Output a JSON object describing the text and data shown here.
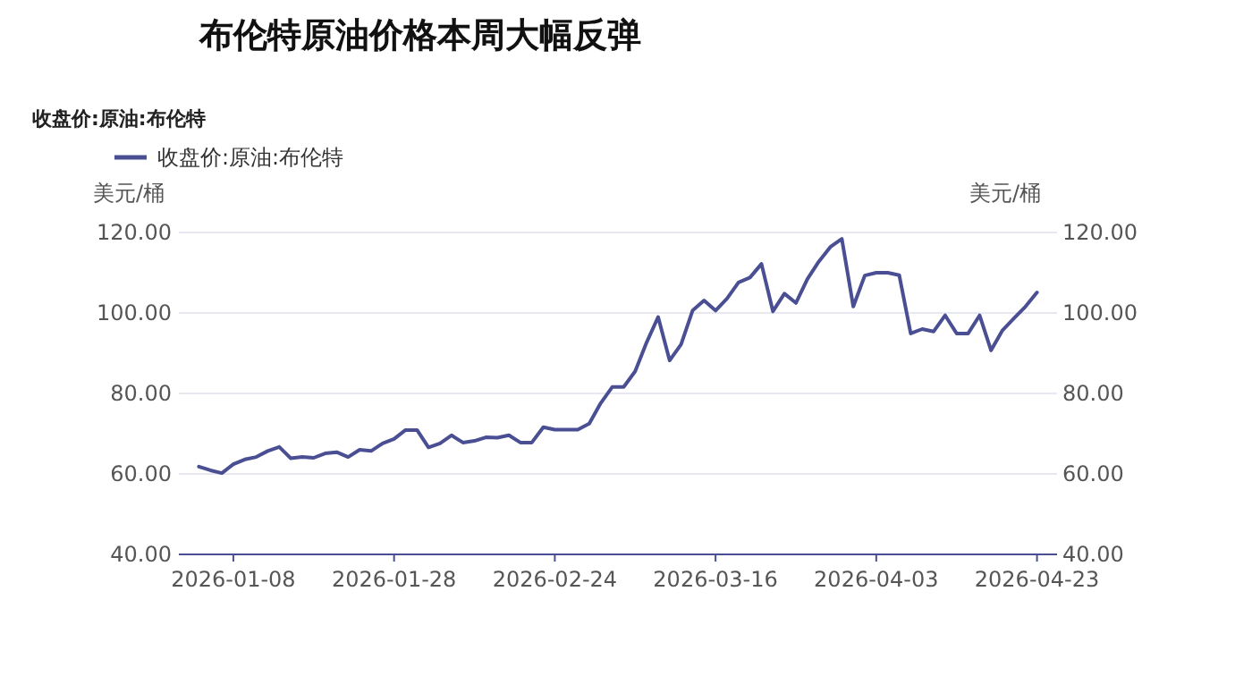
{
  "chart_data": {
    "type": "line",
    "title": "布伦特原油价格本周大幅反弹",
    "subtitle": "收盘价:原油:布伦特",
    "ylabel": "美元/桶",
    "y2label": "美元/桶",
    "categories": [
      null,
      null,
      null,
      "2026-01-08",
      null,
      null,
      null,
      null,
      null,
      null,
      null,
      null,
      null,
      null,
      null,
      null,
      null,
      "2026-01-28",
      null,
      null,
      null,
      null,
      null,
      null,
      null,
      null,
      null,
      null,
      null,
      null,
      null,
      "2026-02-24",
      null,
      null,
      null,
      null,
      null,
      null,
      null,
      null,
      null,
      null,
      null,
      null,
      null,
      "2026-03-16",
      null,
      null,
      null,
      null,
      null,
      null,
      null,
      null,
      null,
      null,
      null,
      null,
      null,
      "2026-04-03",
      null,
      null,
      null,
      null,
      null,
      null,
      null,
      null,
      null,
      null,
      null,
      null,
      null,
      "2026-04-23"
    ],
    "series": [
      {
        "name": "收盘价:原油:布伦特",
        "color": "#4a4f94",
        "values": [
          61.8,
          60.9,
          60.2,
          62.4,
          63.6,
          64.2,
          65.7,
          66.7,
          63.9,
          64.2,
          64.0,
          65.1,
          65.4,
          64.2,
          66.0,
          65.7,
          67.6,
          68.7,
          70.9,
          70.9,
          66.6,
          67.6,
          69.6,
          67.8,
          68.2,
          69.1,
          69.0,
          69.6,
          67.8,
          67.8,
          71.6,
          71.0,
          71.0,
          71.0,
          72.5,
          77.6,
          81.6,
          81.6,
          85.5,
          92.7,
          99.0,
          88.2,
          92.2,
          100.6,
          103.1,
          100.6,
          103.6,
          107.6,
          108.8,
          112.2,
          100.4,
          104.8,
          102.5,
          108.4,
          112.8,
          116.4,
          118.4,
          101.6,
          109.3,
          110.0,
          110.0,
          109.4,
          94.9,
          96.0,
          95.4,
          99.4,
          94.9,
          94.9,
          99.4,
          90.7,
          95.7,
          98.7,
          101.6,
          105.1
        ]
      }
    ],
    "ylim": [
      40,
      120
    ],
    "yticks": [
      {
        "value": 40,
        "label": "40.00"
      },
      {
        "value": 60,
        "label": "60.00"
      },
      {
        "value": 80,
        "label": "80.00"
      },
      {
        "value": 100,
        "label": "100.00"
      },
      {
        "value": 120,
        "label": "120.00"
      }
    ],
    "y2lim": [
      40,
      120
    ],
    "y2ticks": [
      {
        "value": 40,
        "label": "40.00"
      },
      {
        "value": 60,
        "label": "60.00"
      },
      {
        "value": 80,
        "label": "80.00"
      },
      {
        "value": 100,
        "label": "100.00"
      },
      {
        "value": 120,
        "label": "120.00"
      }
    ],
    "grid": "y",
    "legend": "top left",
    "marker": "none",
    "line_style": "solid"
  }
}
